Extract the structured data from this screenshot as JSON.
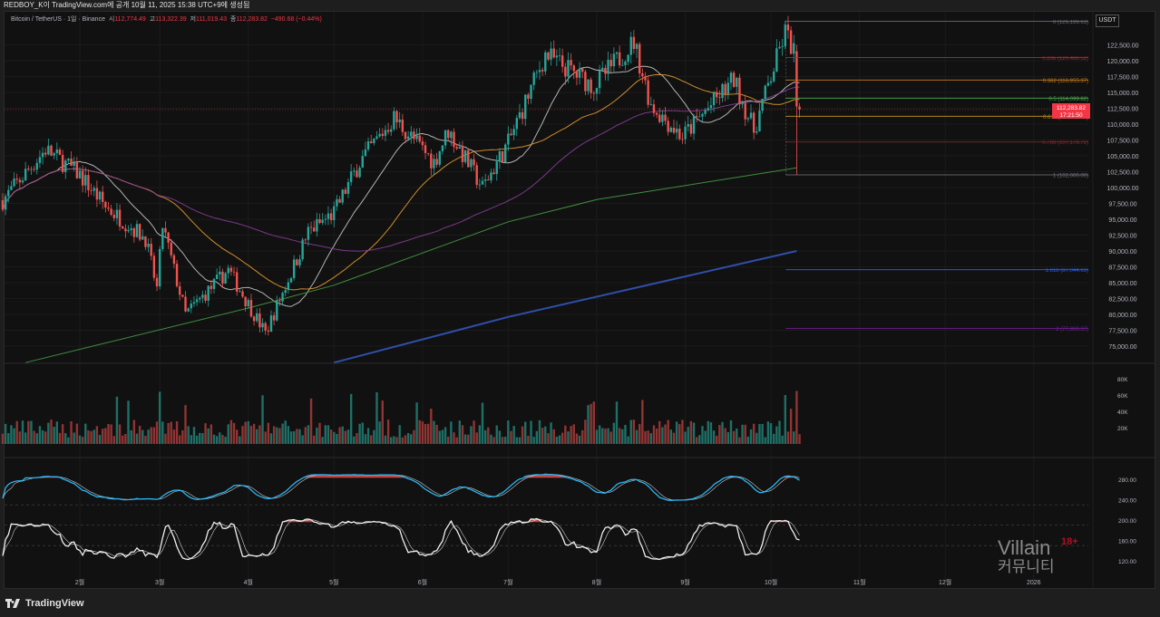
{
  "header": {
    "publish_note": "REDBOY_K이 TradingView.com에 공개 10월 11, 2025 15:38 UTC+9에 생성됨",
    "symbol": "Bitcoin / TetherUS · 1일 · Binance",
    "open_label": "시",
    "open": "112,774.49",
    "high_label": "고",
    "high": "113,322.39",
    "low_label": "저",
    "low": "111,019.43",
    "close_label": "종",
    "close": "112,283.82",
    "change": "−490.68 (−0.44%)",
    "currency_button": "USDT"
  },
  "colors": {
    "up": "#26a69a",
    "down": "#ef5350",
    "background": "#111111",
    "price_tag": "#f23645"
  },
  "price_tag": {
    "price": "112,283.82",
    "countdown": "17:21:50"
  },
  "chart_data": {
    "type": "candlestick",
    "title": "",
    "price_axis": {
      "ticks": [
        "122,500.00",
        "120,000.00",
        "117,500.00",
        "115,000.00",
        "112,500.00",
        "110,000.00",
        "107,500.00",
        "105,000.00",
        "102,500.00",
        "100,000.00",
        "97,500.00",
        "95,000.00",
        "92,500.00",
        "90,000.00",
        "87,500.00",
        "85,000.00",
        "82,500.00",
        "80,000.00",
        "77,500.00",
        "75,000.00"
      ],
      "range": [
        72000,
        127000
      ]
    },
    "time_axis": {
      "ticks": [
        {
          "label": "2월",
          "date": "2025-02-01"
        },
        {
          "label": "3월",
          "date": "2025-03-01"
        },
        {
          "label": "4월",
          "date": "2025-04-01"
        },
        {
          "label": "5월",
          "date": "2025-05-01"
        },
        {
          "label": "6월",
          "date": "2025-06-01"
        },
        {
          "label": "7월",
          "date": "2025-07-01"
        },
        {
          "label": "8월",
          "date": "2025-08-01"
        },
        {
          "label": "9월",
          "date": "2025-09-01"
        },
        {
          "label": "10월",
          "date": "2025-10-01"
        },
        {
          "label": "11월",
          "date": "2025-11-01"
        },
        {
          "label": "12월",
          "date": "2025-12-01"
        },
        {
          "label": "2026",
          "date": "2026-01-01"
        }
      ]
    },
    "approx_close_path": [
      [
        "2025-01-05",
        98000
      ],
      [
        "2025-01-20",
        106000
      ],
      [
        "2025-02-01",
        102000
      ],
      [
        "2025-02-10",
        97000
      ],
      [
        "2025-02-24",
        92000
      ],
      [
        "2025-02-28",
        84000
      ],
      [
        "2025-03-02",
        94000
      ],
      [
        "2025-03-10",
        80000
      ],
      [
        "2025-03-25",
        87000
      ],
      [
        "2025-04-07",
        77000
      ],
      [
        "2025-04-22",
        93000
      ],
      [
        "2025-05-01",
        96000
      ],
      [
        "2025-05-10",
        104000
      ],
      [
        "2025-05-22",
        111000
      ],
      [
        "2025-06-05",
        104000
      ],
      [
        "2025-06-10",
        109000
      ],
      [
        "2025-06-22",
        100000
      ],
      [
        "2025-07-01",
        107000
      ],
      [
        "2025-07-14",
        121000
      ],
      [
        "2025-07-31",
        116000
      ],
      [
        "2025-08-14",
        123000
      ],
      [
        "2025-08-20",
        113000
      ],
      [
        "2025-08-31",
        108000
      ],
      [
        "2025-09-18",
        117000
      ],
      [
        "2025-09-25",
        109000
      ],
      [
        "2025-10-06",
        124500
      ],
      [
        "2025-10-09",
        121500
      ],
      [
        "2025-10-10",
        113200
      ],
      [
        "2025-10-11",
        112283.82
      ]
    ],
    "last_candles": [
      {
        "date": "2025-10-10",
        "open": 121500,
        "high": 122500,
        "low": 102000,
        "close": 112774.49
      },
      {
        "date": "2025-10-11",
        "open": 112774.49,
        "high": 113322.39,
        "low": 111019.43,
        "close": 112283.82
      }
    ],
    "moving_averages": [
      {
        "period": 20,
        "color": "#d0d0d0"
      },
      {
        "period": 50,
        "color": "#f0a030"
      },
      {
        "period": 100,
        "color": "#8e3fa0"
      }
    ],
    "long_ma_green": {
      "color": "#3f8f3f",
      "points": [
        [
          "2025-01-13",
          72400
        ],
        [
          "2025-04-01",
          81000
        ],
        [
          "2025-05-01",
          84600
        ],
        [
          "2025-07-01",
          94600
        ],
        [
          "2025-08-01",
          98100
        ],
        [
          "2025-10-10",
          103100
        ]
      ]
    },
    "long_ma_blue": {
      "color": "#2f4fa8",
      "points": [
        [
          "2025-05-01",
          72400
        ],
        [
          "2025-07-01",
          79600
        ],
        [
          "2025-10-10",
          90000
        ]
      ]
    },
    "fibonacci": {
      "start_date": "2025-10-10",
      "levels": [
        {
          "label": "0 (126,199.63)",
          "price": 126199.63,
          "color": "#787b86"
        },
        {
          "label": "0.236 (120,488.52)",
          "price": 120488.52,
          "color": "#b22833"
        },
        {
          "label": "0.382 (116,955.37)",
          "price": 116955.37,
          "color": "#c77c1a"
        },
        {
          "label": "0.5 (114,099.82)",
          "price": 114099.82,
          "color": "#4caf50"
        },
        {
          "label": "0.618 (111,244.26)",
          "price": 111244.26,
          "color": "#c7961a"
        },
        {
          "label": "0.786 (107,178.72)",
          "price": 107178.72,
          "color": "#8c2a2a"
        },
        {
          "label": "1 (102,000.00)",
          "price": 102000,
          "color": "#787b86"
        },
        {
          "label": "1.618 (87,044.63)",
          "price": 87044.63,
          "color": "#2962ff"
        },
        {
          "label": "2 (77,800.37)",
          "price": 77800.37,
          "color": "#7b1fa2"
        }
      ]
    },
    "volume": {
      "axis_ticks": [
        "80K",
        "60K",
        "40K",
        "20K"
      ],
      "last_volume": 65000
    },
    "oscillator": {
      "axis_ticks": [
        "280.00",
        "240.00",
        "200.00",
        "160.00",
        "120.00"
      ],
      "line_color": "#29b6f6",
      "signal_color": "#ffffff",
      "overbought_fill": "#ef5350"
    }
  },
  "footer": {
    "brand": "TradingView"
  },
  "watermark": {
    "name": "Villain",
    "sub": "커뮤니티",
    "badge": "18+"
  }
}
